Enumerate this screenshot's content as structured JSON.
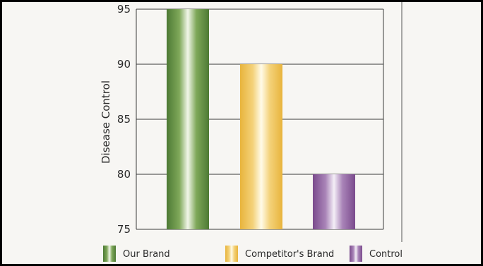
{
  "chart_data": {
    "type": "bar",
    "categories": [
      "Our Brand",
      "Competitor's Brand",
      "Control"
    ],
    "values": [
      95,
      90,
      80
    ],
    "title": "",
    "xlabel": "",
    "ylabel": "Disease Control",
    "ylim": [
      75,
      95
    ],
    "yticks": [
      75,
      80,
      85,
      90,
      95
    ],
    "grid": true,
    "legend": "bottom",
    "colors": {
      "Our Brand": {
        "edge": "#4d7a34",
        "mid": "#7fa85a",
        "light": "#f2f6ea"
      },
      "Competitor's Brand": {
        "edge": "#e8b43c",
        "mid": "#f4d27a",
        "light": "#fffbe8"
      },
      "Control": {
        "edge": "#7a4a8c",
        "mid": "#a984b8",
        "light": "#f4eef7"
      }
    }
  }
}
